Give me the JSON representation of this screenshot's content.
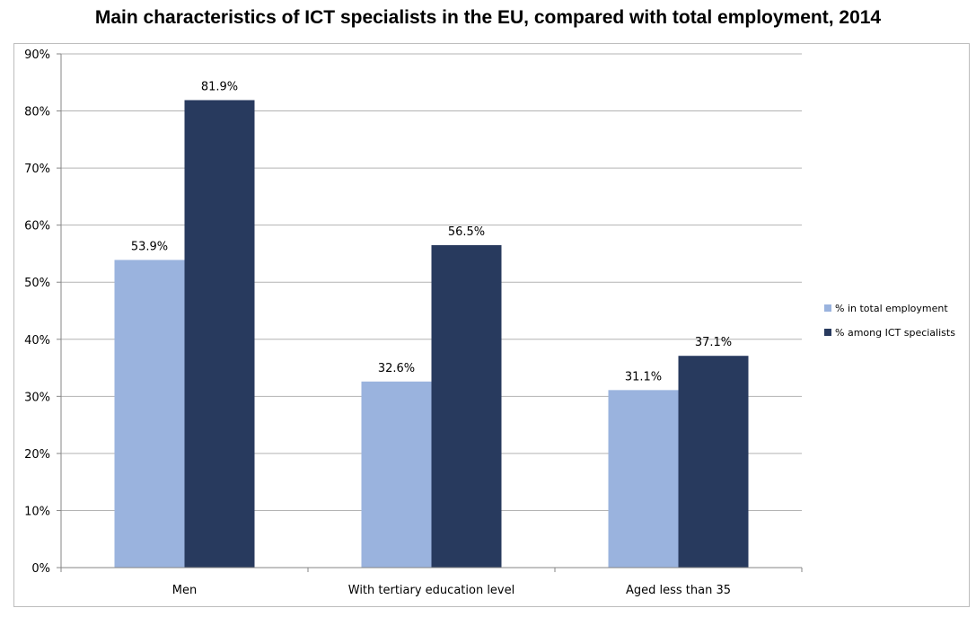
{
  "chart_data": {
    "type": "bar",
    "title": "Main characteristics of ICT specialists in the EU, compared with total employment, 2014",
    "xlabel": "",
    "ylabel": "",
    "categories": [
      "Men",
      "With tertiary education level",
      "Aged less than 35"
    ],
    "series": [
      {
        "name": "% in total employment",
        "values": [
          53.9,
          32.6,
          31.1
        ],
        "color": "#9ab3de",
        "labels": [
          "53.9%",
          "32.6%",
          "31.1%"
        ]
      },
      {
        "name": "% among ICT specialists",
        "values": [
          81.9,
          56.5,
          37.1
        ],
        "color": "#283a5e",
        "labels": [
          "81.9%",
          "56.5%",
          "37.1%"
        ]
      }
    ],
    "ylim": [
      0,
      90
    ],
    "yticks": [
      0,
      10,
      20,
      30,
      40,
      50,
      60,
      70,
      80,
      90
    ],
    "ytick_labels": [
      "0%",
      "10%",
      "20%",
      "30%",
      "40%",
      "50%",
      "60%",
      "70%",
      "80%",
      "90%"
    ],
    "grid": true,
    "legend_position": "right"
  }
}
